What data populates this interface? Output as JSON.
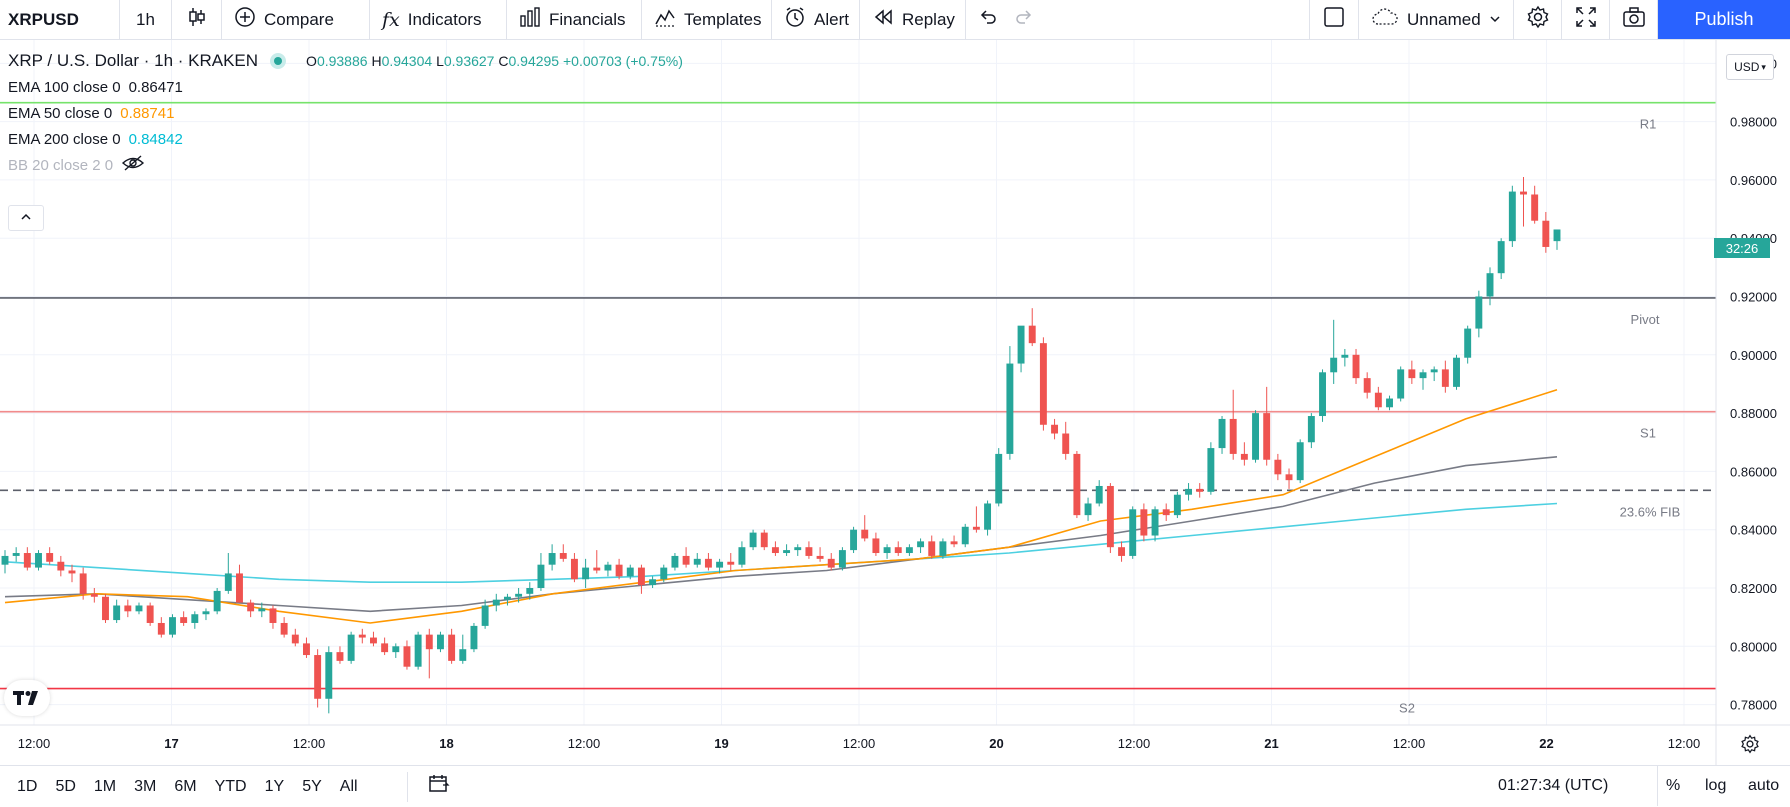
{
  "toolbar": {
    "symbol": "XRPUSD",
    "timeframe": "1h",
    "compare_label": "Compare",
    "indicators_label": "Indicators",
    "financials_label": "Financials",
    "templates_label": "Templates",
    "alert_label": "Alert",
    "replay_label": "Replay",
    "layout_name": "Unnamed",
    "publish_label": "Publish"
  },
  "legend": {
    "title": "XRP / U.S. Dollar · 1h · KRAKEN",
    "open_key": "O",
    "open": "0.93886",
    "high_key": "H",
    "high": "0.94304",
    "low_key": "L",
    "low": "0.93627",
    "close_key": "C",
    "close": "0.94295",
    "change": "+0.00703 (+0.75%)",
    "ema100_label": "EMA 100 close 0",
    "ema100_value": "0.86471",
    "ema50_label": "EMA 50 close 0",
    "ema50_value": "0.88741",
    "ema200_label": "EMA 200 close 0",
    "ema200_value": "0.84842",
    "bb_label": "BB 20 close 2 0"
  },
  "price_scale": {
    "currency": "USD",
    "current_tag": "32:26"
  },
  "bottom": {
    "ranges": [
      "1D",
      "5D",
      "1M",
      "3M",
      "6M",
      "YTD",
      "1Y",
      "5Y",
      "All"
    ],
    "clock": "01:27:34 (UTC)",
    "percent": "%",
    "log": "log",
    "auto": "auto"
  },
  "colors": {
    "up": "#26a69a",
    "down": "#ef5350",
    "ema50": "#ff9800",
    "ema100": "#787b86",
    "ema200": "#4dd0e1",
    "r1": "#76e36b",
    "pivot": "#5d606b",
    "s1": "#f28b8b",
    "fib": "#5d606b",
    "s2": "#f23645",
    "accent": "#2962ff"
  },
  "chart_data": {
    "type": "candlestick",
    "y_ticks": [
      "0.78000",
      "0.80000",
      "0.82000",
      "0.84000",
      "0.86000",
      "0.88000",
      "0.90000",
      "0.92000",
      "0.94000",
      "0.96000",
      "0.98000",
      "1.00000"
    ],
    "ylim": [
      0.773,
      1.008
    ],
    "x_ticks": [
      "12:00",
      "17",
      "12:00",
      "18",
      "12:00",
      "19",
      "12:00",
      "20",
      "12:00",
      "21",
      "12:00",
      "22",
      "12:00"
    ],
    "levels": [
      {
        "name": "R1",
        "value": 0.9865
      },
      {
        "name": "Pivot",
        "value": 0.9195
      },
      {
        "name": "S1",
        "value": 0.8805
      },
      {
        "name": "23.6% FIB",
        "value": 0.8535
      },
      {
        "name": "S2",
        "value": 0.7855
      }
    ],
    "candles_ohlc": [
      [
        0.828,
        0.833,
        0.825,
        0.831
      ],
      [
        0.831,
        0.834,
        0.829,
        0.832
      ],
      [
        0.832,
        0.834,
        0.826,
        0.827
      ],
      [
        0.827,
        0.833,
        0.826,
        0.832
      ],
      [
        0.832,
        0.834,
        0.828,
        0.829
      ],
      [
        0.829,
        0.831,
        0.824,
        0.826
      ],
      [
        0.826,
        0.828,
        0.822,
        0.825
      ],
      [
        0.825,
        0.827,
        0.816,
        0.818
      ],
      [
        0.818,
        0.82,
        0.815,
        0.817
      ],
      [
        0.817,
        0.818,
        0.808,
        0.809
      ],
      [
        0.809,
        0.816,
        0.808,
        0.814
      ],
      [
        0.814,
        0.816,
        0.81,
        0.812
      ],
      [
        0.812,
        0.815,
        0.811,
        0.814
      ],
      [
        0.814,
        0.815,
        0.807,
        0.808
      ],
      [
        0.808,
        0.81,
        0.803,
        0.804
      ],
      [
        0.804,
        0.811,
        0.803,
        0.81
      ],
      [
        0.81,
        0.812,
        0.807,
        0.808
      ],
      [
        0.808,
        0.812,
        0.806,
        0.811
      ],
      [
        0.811,
        0.813,
        0.809,
        0.812
      ],
      [
        0.812,
        0.82,
        0.811,
        0.819
      ],
      [
        0.819,
        0.832,
        0.818,
        0.825
      ],
      [
        0.825,
        0.828,
        0.815,
        0.815
      ],
      [
        0.815,
        0.816,
        0.81,
        0.812
      ],
      [
        0.812,
        0.815,
        0.81,
        0.813
      ],
      [
        0.813,
        0.814,
        0.806,
        0.808
      ],
      [
        0.808,
        0.81,
        0.803,
        0.804
      ],
      [
        0.804,
        0.806,
        0.8,
        0.801
      ],
      [
        0.801,
        0.803,
        0.796,
        0.797
      ],
      [
        0.797,
        0.799,
        0.779,
        0.782
      ],
      [
        0.782,
        0.8,
        0.777,
        0.798
      ],
      [
        0.798,
        0.8,
        0.794,
        0.795
      ],
      [
        0.795,
        0.805,
        0.794,
        0.804
      ],
      [
        0.804,
        0.806,
        0.801,
        0.803
      ],
      [
        0.803,
        0.805,
        0.8,
        0.801
      ],
      [
        0.801,
        0.803,
        0.797,
        0.798
      ],
      [
        0.798,
        0.801,
        0.796,
        0.8
      ],
      [
        0.8,
        0.802,
        0.792,
        0.793
      ],
      [
        0.793,
        0.805,
        0.792,
        0.804
      ],
      [
        0.804,
        0.806,
        0.789,
        0.799
      ],
      [
        0.799,
        0.805,
        0.798,
        0.804
      ],
      [
        0.804,
        0.806,
        0.794,
        0.795
      ],
      [
        0.795,
        0.804,
        0.794,
        0.799
      ],
      [
        0.799,
        0.808,
        0.798,
        0.807
      ],
      [
        0.807,
        0.816,
        0.806,
        0.814
      ],
      [
        0.814,
        0.818,
        0.812,
        0.816
      ],
      [
        0.816,
        0.818,
        0.814,
        0.817
      ],
      [
        0.817,
        0.82,
        0.815,
        0.818
      ],
      [
        0.818,
        0.822,
        0.816,
        0.82
      ],
      [
        0.82,
        0.832,
        0.819,
        0.828
      ],
      [
        0.828,
        0.835,
        0.826,
        0.832
      ],
      [
        0.832,
        0.835,
        0.829,
        0.83
      ],
      [
        0.83,
        0.832,
        0.822,
        0.823
      ],
      [
        0.823,
        0.83,
        0.82,
        0.827
      ],
      [
        0.827,
        0.833,
        0.825,
        0.826
      ],
      [
        0.826,
        0.829,
        0.824,
        0.828
      ],
      [
        0.828,
        0.83,
        0.823,
        0.824
      ],
      [
        0.824,
        0.828,
        0.823,
        0.827
      ],
      [
        0.827,
        0.828,
        0.818,
        0.821
      ],
      [
        0.821,
        0.824,
        0.82,
        0.823
      ],
      [
        0.823,
        0.828,
        0.822,
        0.827
      ],
      [
        0.827,
        0.832,
        0.826,
        0.831
      ],
      [
        0.831,
        0.834,
        0.827,
        0.828
      ],
      [
        0.828,
        0.832,
        0.827,
        0.83
      ],
      [
        0.83,
        0.832,
        0.826,
        0.827
      ],
      [
        0.827,
        0.83,
        0.825,
        0.829
      ],
      [
        0.829,
        0.832,
        0.826,
        0.828
      ],
      [
        0.828,
        0.836,
        0.827,
        0.834
      ],
      [
        0.834,
        0.84,
        0.833,
        0.839
      ],
      [
        0.839,
        0.84,
        0.833,
        0.834
      ],
      [
        0.834,
        0.836,
        0.831,
        0.832
      ],
      [
        0.832,
        0.835,
        0.831,
        0.833
      ],
      [
        0.833,
        0.835,
        0.831,
        0.834
      ],
      [
        0.834,
        0.836,
        0.83,
        0.831
      ],
      [
        0.831,
        0.834,
        0.829,
        0.83
      ],
      [
        0.83,
        0.832,
        0.826,
        0.827
      ],
      [
        0.827,
        0.834,
        0.826,
        0.833
      ],
      [
        0.833,
        0.841,
        0.832,
        0.84
      ],
      [
        0.84,
        0.845,
        0.836,
        0.837
      ],
      [
        0.837,
        0.839,
        0.831,
        0.832
      ],
      [
        0.832,
        0.835,
        0.83,
        0.834
      ],
      [
        0.834,
        0.836,
        0.831,
        0.832
      ],
      [
        0.832,
        0.835,
        0.831,
        0.834
      ],
      [
        0.834,
        0.837,
        0.832,
        0.836
      ],
      [
        0.836,
        0.838,
        0.83,
        0.831
      ],
      [
        0.831,
        0.837,
        0.83,
        0.836
      ],
      [
        0.836,
        0.838,
        0.834,
        0.835
      ],
      [
        0.835,
        0.842,
        0.834,
        0.841
      ],
      [
        0.841,
        0.848,
        0.839,
        0.84
      ],
      [
        0.84,
        0.85,
        0.838,
        0.849
      ],
      [
        0.849,
        0.868,
        0.848,
        0.866
      ],
      [
        0.866,
        0.903,
        0.864,
        0.897
      ],
      [
        0.897,
        0.908,
        0.894,
        0.91
      ],
      [
        0.91,
        0.916,
        0.903,
        0.904
      ],
      [
        0.904,
        0.906,
        0.874,
        0.876
      ],
      [
        0.876,
        0.878,
        0.871,
        0.873
      ],
      [
        0.873,
        0.877,
        0.864,
        0.866
      ],
      [
        0.866,
        0.867,
        0.844,
        0.845
      ],
      [
        0.845,
        0.851,
        0.843,
        0.849
      ],
      [
        0.849,
        0.857,
        0.848,
        0.855
      ],
      [
        0.855,
        0.856,
        0.832,
        0.834
      ],
      [
        0.834,
        0.836,
        0.829,
        0.831
      ],
      [
        0.831,
        0.848,
        0.83,
        0.847
      ],
      [
        0.847,
        0.849,
        0.836,
        0.838
      ],
      [
        0.838,
        0.848,
        0.836,
        0.847
      ],
      [
        0.847,
        0.849,
        0.843,
        0.845
      ],
      [
        0.845,
        0.853,
        0.844,
        0.852
      ],
      [
        0.852,
        0.856,
        0.85,
        0.854
      ],
      [
        0.854,
        0.856,
        0.851,
        0.853
      ],
      [
        0.853,
        0.87,
        0.852,
        0.868
      ],
      [
        0.868,
        0.879,
        0.866,
        0.878
      ],
      [
        0.878,
        0.888,
        0.864,
        0.866
      ],
      [
        0.866,
        0.87,
        0.862,
        0.864
      ],
      [
        0.864,
        0.881,
        0.863,
        0.88
      ],
      [
        0.88,
        0.889,
        0.862,
        0.864
      ],
      [
        0.864,
        0.866,
        0.857,
        0.859
      ],
      [
        0.859,
        0.861,
        0.854,
        0.857
      ],
      [
        0.857,
        0.871,
        0.856,
        0.87
      ],
      [
        0.87,
        0.88,
        0.868,
        0.879
      ],
      [
        0.879,
        0.895,
        0.877,
        0.894
      ],
      [
        0.894,
        0.912,
        0.89,
        0.899
      ],
      [
        0.899,
        0.902,
        0.896,
        0.9
      ],
      [
        0.9,
        0.902,
        0.89,
        0.892
      ],
      [
        0.892,
        0.894,
        0.885,
        0.887
      ],
      [
        0.887,
        0.889,
        0.881,
        0.882
      ],
      [
        0.882,
        0.886,
        0.881,
        0.885
      ],
      [
        0.885,
        0.896,
        0.884,
        0.895
      ],
      [
        0.895,
        0.898,
        0.89,
        0.892
      ],
      [
        0.892,
        0.895,
        0.888,
        0.894
      ],
      [
        0.894,
        0.896,
        0.891,
        0.895
      ],
      [
        0.895,
        0.898,
        0.887,
        0.889
      ],
      [
        0.889,
        0.9,
        0.888,
        0.899
      ],
      [
        0.899,
        0.91,
        0.897,
        0.909
      ],
      [
        0.909,
        0.922,
        0.906,
        0.92
      ],
      [
        0.92,
        0.93,
        0.917,
        0.928
      ],
      [
        0.928,
        0.94,
        0.926,
        0.939
      ],
      [
        0.939,
        0.958,
        0.937,
        0.956
      ],
      [
        0.956,
        0.961,
        0.944,
        0.955
      ],
      [
        0.955,
        0.958,
        0.945,
        0.946
      ],
      [
        0.946,
        0.949,
        0.935,
        0.937
      ],
      [
        0.939,
        0.943,
        0.936,
        0.943
      ]
    ],
    "ema50": [
      0.815,
      0.818,
      0.817,
      0.812,
      0.808,
      0.812,
      0.818,
      0.822,
      0.826,
      0.828,
      0.83,
      0.834,
      0.843,
      0.847,
      0.852,
      0.865,
      0.878,
      0.888
    ],
    "ema100": [
      0.817,
      0.818,
      0.816,
      0.814,
      0.812,
      0.814,
      0.818,
      0.821,
      0.824,
      0.826,
      0.83,
      0.834,
      0.838,
      0.843,
      0.848,
      0.856,
      0.862,
      0.865
    ],
    "ema200": [
      0.829,
      0.827,
      0.825,
      0.823,
      0.822,
      0.822,
      0.823,
      0.824,
      0.826,
      0.828,
      0.83,
      0.832,
      0.835,
      0.838,
      0.841,
      0.844,
      0.847,
      0.849
    ]
  }
}
